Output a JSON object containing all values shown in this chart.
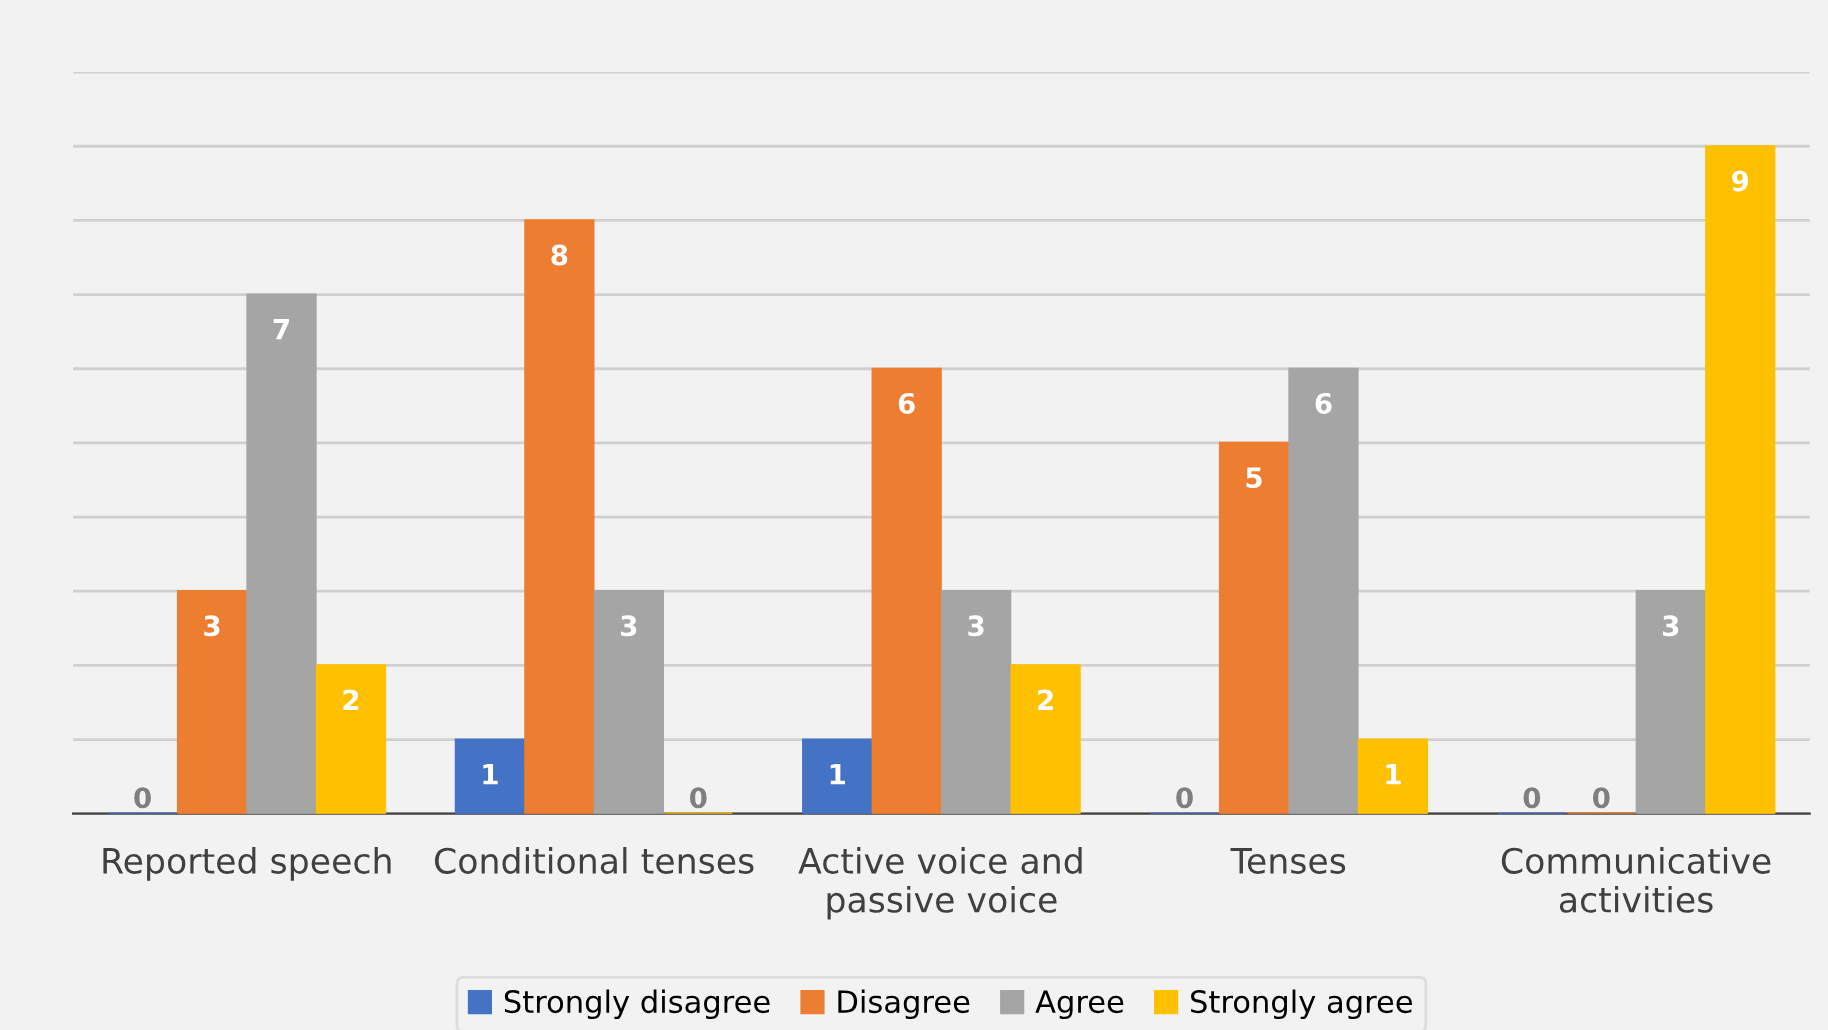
{
  "chart_data": {
    "type": "bar",
    "categories": [
      "Reported speech",
      "Conditional tenses",
      "Active voice and\npassive voice",
      "Tenses",
      "Communicative\nactivities"
    ],
    "series": [
      {
        "name": "Strongly disagree",
        "color": "#4472c4",
        "values": [
          0,
          1,
          1,
          0,
          0
        ]
      },
      {
        "name": "Disagree",
        "color": "#ed7d31",
        "values": [
          3,
          8,
          6,
          5,
          0
        ]
      },
      {
        "name": "Agree",
        "color": "#a5a5a5",
        "values": [
          7,
          3,
          3,
          6,
          3
        ]
      },
      {
        "name": "Strongly agree",
        "color": "#ffc000",
        "values": [
          2,
          0,
          2,
          1,
          9
        ]
      }
    ],
    "ylim": [
      0,
      10
    ],
    "yticks": [
      {
        "value": 0,
        "label": null
      },
      {
        "value": 1,
        "label": null
      },
      {
        "value": 2,
        "label": null
      },
      {
        "value": 3,
        "label": null
      },
      {
        "value": 4,
        "label": null
      },
      {
        "value": 5,
        "label": null
      },
      {
        "value": 6,
        "label": null
      },
      {
        "value": 7,
        "label": null
      },
      {
        "value": 8,
        "label": null
      },
      {
        "value": 9,
        "label": null
      },
      {
        "value": 10,
        "label": null
      }
    ],
    "tick_labels": "x",
    "grid": "y",
    "legend": "bottom",
    "data_labels": true
  }
}
